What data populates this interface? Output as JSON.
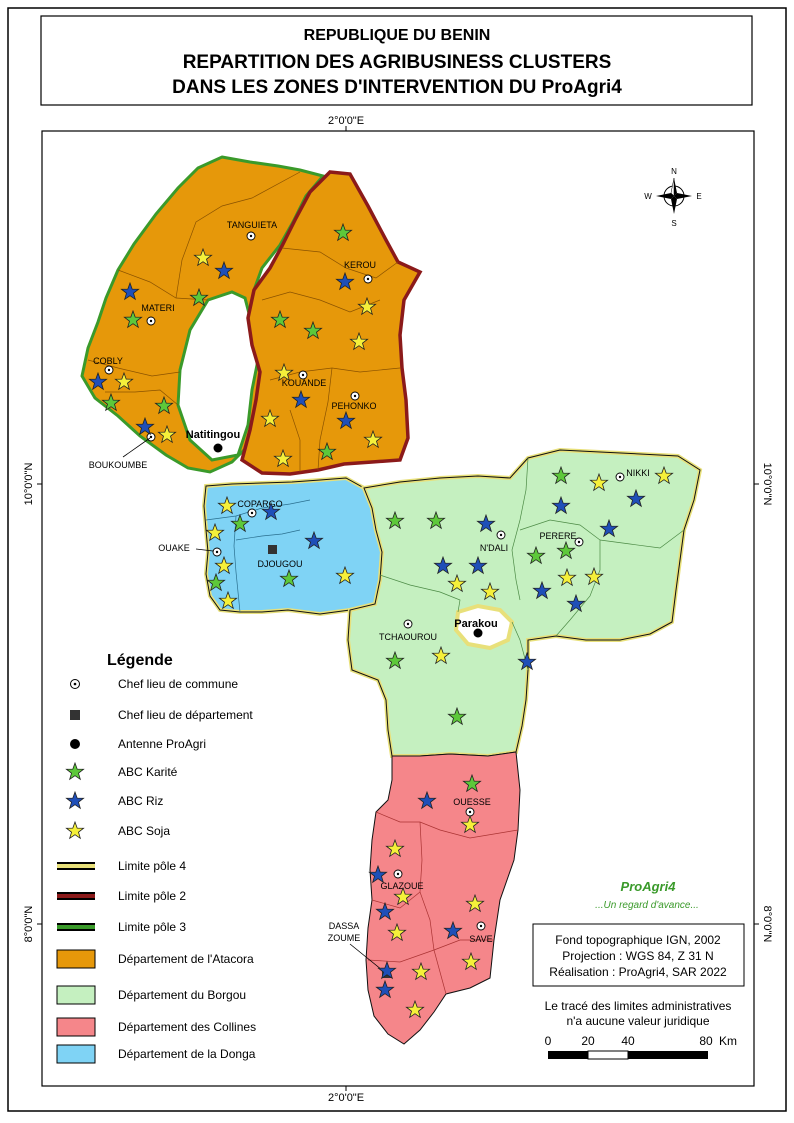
{
  "header": {
    "country": "REPUBLIQUE DU BENIN",
    "title_line1": "REPARTITION DES AGRIBUSINESS CLUSTERS",
    "title_line2": "DANS LES ZONES D'INTERVENTION DU ProAgri4"
  },
  "graticule": {
    "lon_label": "2°0'0\"E",
    "lat_north": "10°0'0\"N",
    "lat_south": "8°0'0\"N"
  },
  "north_arrow": {
    "n": "N",
    "s": "S",
    "e": "E",
    "w": "W"
  },
  "places": {
    "tanguieta": "TANGUIETA",
    "kerou": "KEROU",
    "materi": "MATERI",
    "cobly": "COBLY",
    "kouande": "KOUANDE",
    "pehonko": "PEHONKO",
    "natitingou": "Natitingou",
    "boukoumbe": "BOUKOUMBE",
    "copargo": "COPARGO",
    "ouake": "OUAKE",
    "djougou": "DJOUGOU",
    "nikki": "NIKKI",
    "perere": "PERERE",
    "ndali": "N'DALI",
    "tchaourou": "TCHAOUROU",
    "parakou": "Parakou",
    "ouesse": "OUESSE",
    "glazoue": "GLAZOUE",
    "dassa1": "DASSA",
    "dassa2": "ZOUME",
    "save": "SAVE"
  },
  "legend": {
    "title": "Légende",
    "items": [
      "Chef lieu de commune",
      "Chef lieu de département",
      "Antenne ProAgri",
      "ABC Karité",
      "ABC Riz",
      "ABC Soja",
      "Limite pôle 4",
      "Limite pôle 2",
      "Limite pôle 3",
      "Département de l'Atacora",
      "Département du Borgou",
      "Département des Collines",
      "Département de la Donga"
    ]
  },
  "colors": {
    "atacora": "#E6980A",
    "borgou": "#C5F0C0",
    "collines": "#F5868A",
    "donga": "#7FD3F5",
    "karite": "#5DC83A",
    "riz": "#1F4FB8",
    "soja": "#F5F03A",
    "pole2": "#8B1A1A",
    "pole3": "#3A9A2A",
    "pole4": "#E8E07A"
  },
  "brand": {
    "name": "ProAgri4",
    "tagline": "...Un regard d'avance..."
  },
  "credits": {
    "line1": "Fond topographique IGN, 2002",
    "line2": "Projection : WGS 84, Z 31 N",
    "line3": "Réalisation : ProAgri4, SAR 2022"
  },
  "disclaimer": {
    "line1": "Le tracé des limites administratives",
    "line2": "n'a aucune valeur juridique"
  },
  "scale": {
    "t0": "0",
    "t1": "20",
    "t2": "40",
    "t3": "80",
    "unit": "Km"
  }
}
